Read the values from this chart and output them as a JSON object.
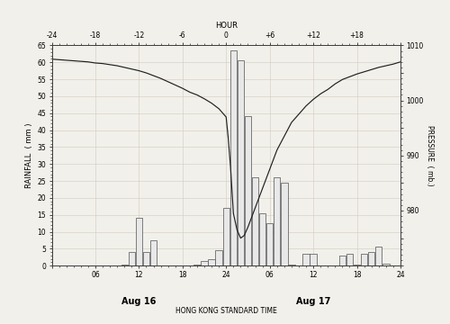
{
  "title_top": "HOUR",
  "xlabel": "HONG KONG STANDARD TIME",
  "ylabel_left": "RAINFALL  ( mm )",
  "ylabel_right": "PRESSURE  ( mb.)",
  "top_x_ticks": [
    0,
    6,
    12,
    18,
    24,
    30,
    36,
    42,
    48
  ],
  "top_x_tick_labels": [
    "-24",
    "-18",
    "-12",
    "-6",
    "0",
    "+6",
    "+12",
    "+18",
    ""
  ],
  "bottom_x_ticks": [
    0,
    6,
    12,
    18,
    24,
    30,
    36,
    42,
    48
  ],
  "bottom_x_tick_labels": [
    "",
    "06",
    "12",
    "18",
    "24",
    "06",
    "12",
    "18",
    "24"
  ],
  "ylim_rain": [
    0,
    65
  ],
  "ylim_pressure": [
    970,
    1010
  ],
  "rain_yticks": [
    0,
    5,
    10,
    15,
    20,
    25,
    30,
    35,
    40,
    45,
    50,
    55,
    60,
    65
  ],
  "pressure_yticks": [
    970,
    975,
    980,
    985,
    990,
    995,
    1000,
    1005,
    1010
  ],
  "pressure_ytick_labels": [
    "",
    "",
    "980",
    "",
    "990",
    "",
    "1000",
    "",
    "1010"
  ],
  "bar_hours": [
    10,
    11,
    12,
    13,
    14,
    20,
    21,
    22,
    23,
    24,
    25,
    26,
    27,
    28,
    29,
    30,
    31,
    32,
    33,
    35,
    36,
    40,
    41,
    42,
    43,
    44,
    45,
    46
  ],
  "bar_values": [
    0.2,
    4.0,
    14.0,
    4.0,
    7.5,
    0.2,
    1.5,
    2.0,
    4.5,
    17.0,
    63.5,
    60.5,
    44.0,
    26.0,
    15.5,
    12.5,
    26.0,
    24.5,
    0.2,
    3.5,
    3.5,
    3.0,
    3.5,
    0.2,
    3.5,
    4.0,
    5.5,
    0.5
  ],
  "pressure_hours": [
    0,
    1,
    2,
    3,
    4,
    5,
    6,
    7,
    8,
    9,
    10,
    11,
    12,
    13,
    14,
    15,
    16,
    17,
    18,
    19,
    20,
    21,
    22,
    23,
    24,
    24.3,
    24.6,
    25,
    25.5,
    26,
    26.5,
    27,
    28,
    29,
    30,
    31,
    32,
    33,
    34,
    35,
    36,
    37,
    38,
    39,
    40,
    41,
    42,
    43,
    44,
    45,
    46,
    47,
    48
  ],
  "pressure_values": [
    1007.5,
    1007.4,
    1007.3,
    1007.2,
    1007.1,
    1007.0,
    1006.8,
    1006.7,
    1006.5,
    1006.3,
    1006.0,
    1005.7,
    1005.4,
    1005.0,
    1004.5,
    1004.0,
    1003.4,
    1002.8,
    1002.2,
    1001.5,
    1001.0,
    1000.3,
    999.5,
    998.5,
    997.0,
    993.0,
    988.0,
    979.5,
    976.5,
    975.0,
    975.5,
    977.0,
    980.5,
    984.0,
    987.5,
    991.0,
    993.5,
    996.0,
    997.5,
    999.0,
    1000.2,
    1001.2,
    1002.0,
    1003.0,
    1003.8,
    1004.3,
    1004.8,
    1005.2,
    1005.6,
    1006.0,
    1006.3,
    1006.6,
    1007.0
  ],
  "bar_color": "#e8e8e8",
  "bar_edge_color": "#505050",
  "line_color": "#202020",
  "background_color": "#f2f0ea",
  "grid_color": "#d0ccc0"
}
